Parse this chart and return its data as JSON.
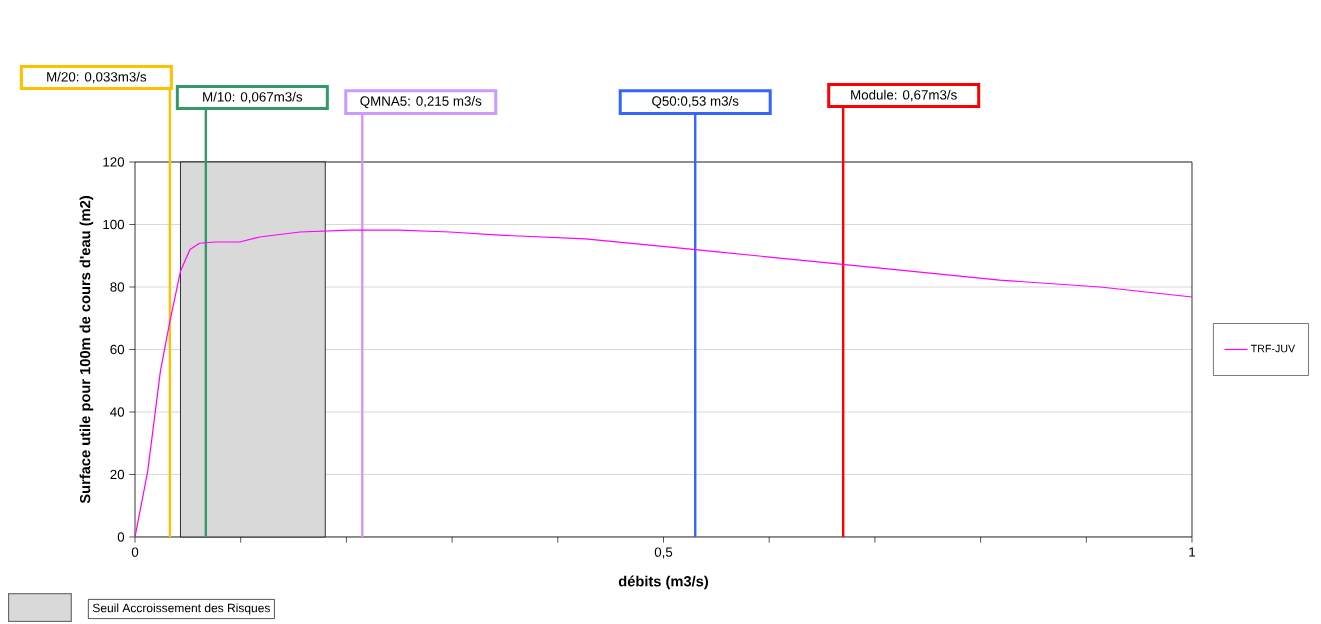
{
  "chart_data": {
    "type": "line",
    "xlabel": "débits (m3/s)",
    "ylabel": "Surface utile pour 100m de cours d'eau (m2)",
    "x": [
      0,
      0.012,
      0.024,
      0.033,
      0.043,
      0.052,
      0.061,
      0.076,
      0.099,
      0.118,
      0.156,
      0.203,
      0.25,
      0.298,
      0.345,
      0.426,
      0.487,
      0.535,
      0.629,
      0.724,
      0.818,
      0.913,
      1
    ],
    "series": [
      {
        "name": "TRF-JUV",
        "color": "#ff00ff",
        "values": [
          0,
          21,
          53,
          69,
          85,
          92,
          94,
          94.4,
          94.4,
          96,
          97.6,
          98.2,
          98.2,
          97.6,
          96.6,
          95.4,
          93.4,
          91.8,
          88.6,
          85.4,
          82.2,
          80,
          76.8
        ]
      }
    ],
    "xlim": [
      0,
      1
    ],
    "ylim": [
      0,
      120
    ],
    "xticks": [
      0,
      {
        "value": 0.1,
        "label": null
      },
      {
        "value": 0.2,
        "label": null
      },
      {
        "value": 0.3,
        "label": null
      },
      {
        "value": 0.4,
        "label": null
      },
      {
        "value": 0.5,
        "label": "0,5"
      },
      {
        "value": 0.6,
        "label": null
      },
      {
        "value": 0.7,
        "label": null
      },
      {
        "value": 0.8,
        "label": null
      },
      {
        "value": 0.9,
        "label": null
      },
      1
    ],
    "yticks": [
      0,
      20,
      40,
      60,
      80,
      100,
      120
    ],
    "grid": "y",
    "legend": "right",
    "ref_lines": [
      {
        "axis": "x",
        "value": 0.033,
        "label": "M/20: 0,033m3/s",
        "color": "#ffc000"
      },
      {
        "axis": "x",
        "value": 0.067,
        "label": "M/10: 0,067m3/s",
        "color": "#339966"
      },
      {
        "axis": "x",
        "value": 0.215,
        "label": "QMNA5: 0,215 m3/s",
        "color": "#cc99ff"
      },
      {
        "axis": "x",
        "value": 0.53,
        "label": "Q50:0,53 m3/s",
        "color": "#3366ff"
      },
      {
        "axis": "x",
        "value": 0.67,
        "label": "Module: 0,67m3/s",
        "color": "#ff0000"
      }
    ],
    "bands": [
      {
        "axis": "x",
        "from": 0.043,
        "to": 0.18,
        "label": "Seuil Accroissement des Risques",
        "color": "#d9d9d9"
      }
    ]
  }
}
